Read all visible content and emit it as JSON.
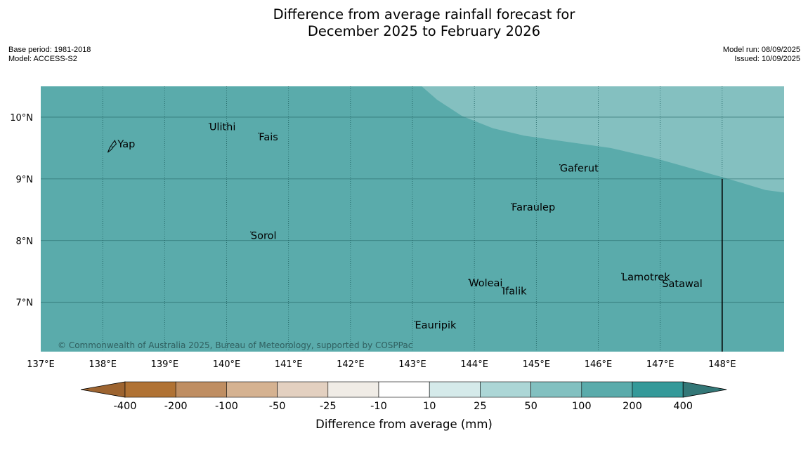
{
  "title": {
    "line1": "Difference from average rainfall forecast for",
    "line2": "December 2025 to February 2026"
  },
  "meta_left": {
    "base_period": "Base period: 1981-2018",
    "model": "Model: ACCESS-S2"
  },
  "meta_right": {
    "model_run": "Model run: 08/09/2025",
    "issued": "Issued: 10/09/2025"
  },
  "map": {
    "lon_range": [
      137,
      149
    ],
    "lat_range": [
      6.2,
      10.5
    ],
    "lon_ticks": [
      {
        "value": 137,
        "label": "137°E"
      },
      {
        "value": 138,
        "label": "138°E"
      },
      {
        "value": 139,
        "label": "139°E"
      },
      {
        "value": 140,
        "label": "140°E"
      },
      {
        "value": 141,
        "label": "141°E"
      },
      {
        "value": 142,
        "label": "142°E"
      },
      {
        "value": 143,
        "label": "143°E"
      },
      {
        "value": 144,
        "label": "144°E"
      },
      {
        "value": 145,
        "label": "145°E"
      },
      {
        "value": 146,
        "label": "146°E"
      },
      {
        "value": 147,
        "label": "147°E"
      },
      {
        "value": 148,
        "label": "148°E"
      }
    ],
    "lat_ticks": [
      {
        "value": 10,
        "label": "10°N"
      },
      {
        "value": 9,
        "label": "9°N"
      },
      {
        "value": 8,
        "label": "8°N"
      },
      {
        "value": 7,
        "label": "7°N"
      }
    ],
    "places": [
      {
        "name": "Yap",
        "lon": 138.15,
        "lat": 9.52
      },
      {
        "name": "Ulithi",
        "lon": 139.72,
        "lat": 9.9
      },
      {
        "name": "Fais",
        "lon": 140.52,
        "lat": 9.74
      },
      {
        "name": "Gaferut",
        "lon": 145.38,
        "lat": 9.23
      },
      {
        "name": "Faraulep",
        "lon": 144.6,
        "lat": 8.6
      },
      {
        "name": "Sorol",
        "lon": 140.39,
        "lat": 8.14
      },
      {
        "name": "Woleai",
        "lon": 143.91,
        "lat": 7.37
      },
      {
        "name": "Ifalik",
        "lon": 144.45,
        "lat": 7.24
      },
      {
        "name": "Lamotrek",
        "lon": 146.38,
        "lat": 7.47
      },
      {
        "name": "Satawal",
        "lon": 147.03,
        "lat": 7.36
      },
      {
        "name": "Eauripik",
        "lon": 143.04,
        "lat": 6.69
      }
    ],
    "colors": {
      "base_fill": "#5aabab",
      "upper_fill": "#84c0c0",
      "grid": "#1f6060"
    },
    "copyright": "© Commonwealth of Australia 2025, Bureau of Meteorology, supported by COSPPac"
  },
  "colorbar": {
    "title": "Difference from average (mm)",
    "tick_labels": [
      "-400",
      "-200",
      "-100",
      "-50",
      "-25",
      "-10",
      "10",
      "25",
      "50",
      "100",
      "200",
      "400"
    ],
    "colors": [
      "#b07234",
      "#bf8e62",
      "#d5b291",
      "#e3d0c0",
      "#f0ece6",
      "#ffffff",
      "#d5eaea",
      "#acd6d6",
      "#82c0c0",
      "#5aabab",
      "#349999",
      "#337777"
    ],
    "left_extension": "#9d6430"
  }
}
